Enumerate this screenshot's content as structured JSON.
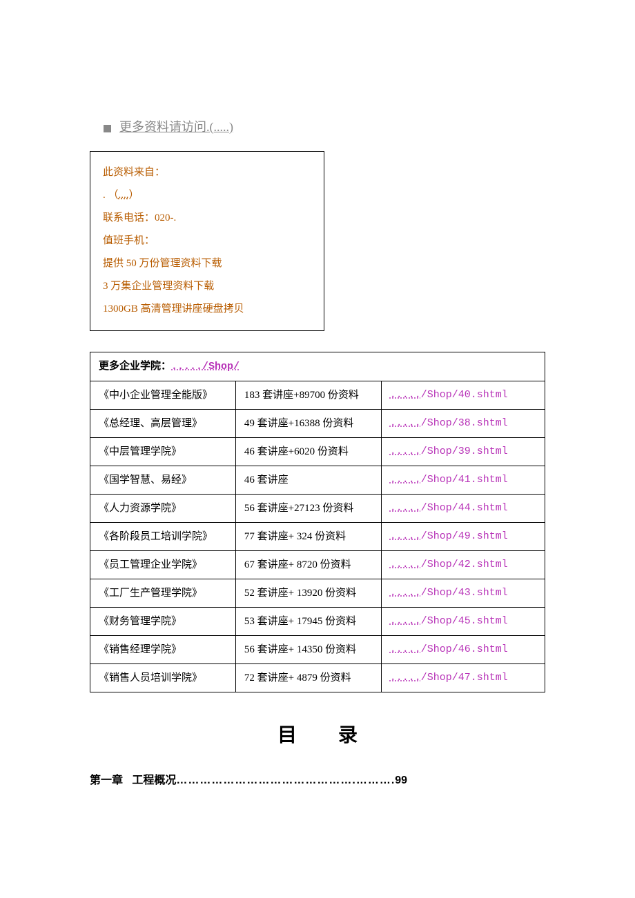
{
  "header": {
    "text": "更多资料请访问.(.....)"
  },
  "info_box": {
    "line1": "此资料来自：",
    "line2_prefix": ". （",
    "line2_dotted": "....",
    "line2_suffix": "）",
    "line3": "联系电话：020-.",
    "line4": "值班手机：",
    "line5": "提供 50 万份管理资料下载",
    "line6": "3 万集企业管理资料下载",
    "line7": "1300GB 高清管理讲座硬盘拷贝"
  },
  "table": {
    "header_label": "更多企业学院：",
    "header_link": "...../Shop/",
    "rows": [
      {
        "name": "《中小企业管理全能版》",
        "desc": "183 套讲座+89700 份资料",
        "link": "...../Shop/40.shtml"
      },
      {
        "name": "《总经理、高层管理》",
        "desc": "49 套讲座+16388 份资料",
        "link": "...../Shop/38.shtml"
      },
      {
        "name": "《中层管理学院》",
        "desc": "46 套讲座+6020 份资料",
        "link": "...../Shop/39.shtml"
      },
      {
        "name": "《国学智慧、易经》",
        "desc": "46 套讲座",
        "link": "...../Shop/41.shtml"
      },
      {
        "name": "《人力资源学院》",
        "desc": "56 套讲座+27123 份资料",
        "link": "...../Shop/44.shtml"
      },
      {
        "name": "《各阶段员工培训学院》",
        "desc": "77 套讲座+ 324 份资料",
        "link": "...../Shop/49.shtml"
      },
      {
        "name": "《员工管理企业学院》",
        "desc": "67 套讲座+ 8720 份资料",
        "link": "...../Shop/42.shtml"
      },
      {
        "name": "《工厂生产管理学院》",
        "desc": "52 套讲座+ 13920 份资料",
        "link": "...../Shop/43.shtml"
      },
      {
        "name": "《财务管理学院》",
        "desc": "53 套讲座+ 17945 份资料",
        "link": "...../Shop/45.shtml"
      },
      {
        "name": "《销售经理学院》",
        "desc": "56 套讲座+ 14350 份资料",
        "link": "...../Shop/46.shtml"
      },
      {
        "name": "《销售人员培训学院》",
        "desc": "72 套讲座+ 4879 份资料",
        "link": "...../Shop/47.shtml"
      }
    ]
  },
  "toc": {
    "title": "目录",
    "chapter1_label": "第一章",
    "chapter1_title": "工程概况",
    "chapter1_dots": "……………………………………….……….",
    "chapter1_page": "99"
  },
  "colors": {
    "info_text": "#b85c00",
    "link_text": "#b833b8",
    "bullet": "#888888",
    "header_text": "#888888",
    "border": "#000000",
    "background": "#ffffff"
  }
}
